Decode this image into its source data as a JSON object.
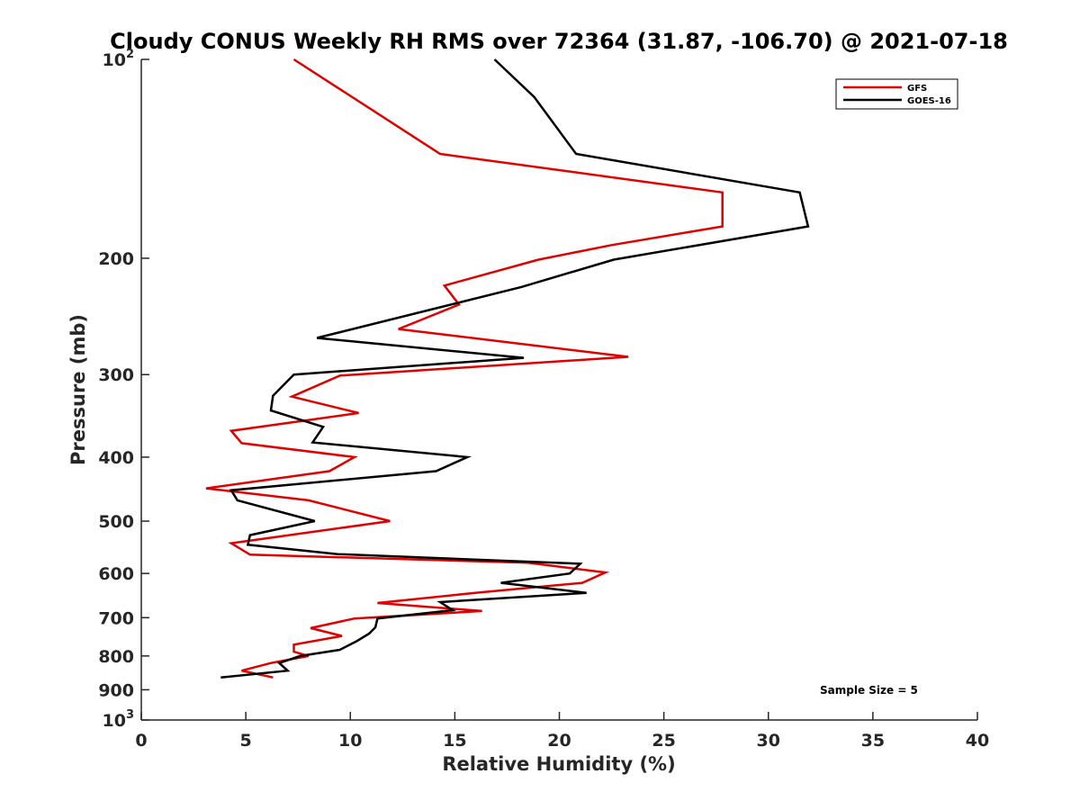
{
  "chart_data": {
    "type": "line",
    "title": "Cloudy CONUS Weekly RH RMS over 72364 (31.87, -106.70) @ 2021-07-18",
    "xlabel": "Relative Humidity (%)",
    "ylabel": "Pressure (mb)",
    "xlim": [
      0,
      40
    ],
    "ylim": [
      100,
      1000
    ],
    "y_scale": "log",
    "y_reversed": true,
    "x_ticks": [
      0,
      5,
      10,
      15,
      20,
      25,
      30,
      35,
      40
    ],
    "x_tick_labels": [
      "0",
      "5",
      "10",
      "15",
      "20",
      "25",
      "30",
      "35",
      "40"
    ],
    "y_ticks": [
      100,
      200,
      300,
      400,
      500,
      600,
      700,
      800,
      900,
      1000
    ],
    "y_tick_labels": [
      {
        "base": "10",
        "exp": "2"
      },
      {
        "base": "200",
        "exp": ""
      },
      {
        "base": "300",
        "exp": ""
      },
      {
        "base": "400",
        "exp": ""
      },
      {
        "base": "500",
        "exp": ""
      },
      {
        "base": "600",
        "exp": ""
      },
      {
        "base": "700",
        "exp": ""
      },
      {
        "base": "800",
        "exp": ""
      },
      {
        "base": "900",
        "exp": ""
      },
      {
        "base": "10",
        "exp": "3"
      }
    ],
    "grid": false,
    "legend_position": "top-right",
    "annotation": "Sample Size = 5",
    "series": [
      {
        "name": "GFS",
        "color": "#e00000",
        "points": [
          {
            "x": 7.3,
            "y": 100
          },
          {
            "x": 14.3,
            "y": 139
          },
          {
            "x": 27.8,
            "y": 159
          },
          {
            "x": 27.8,
            "y": 179
          },
          {
            "x": 22.5,
            "y": 191
          },
          {
            "x": 19.0,
            "y": 201
          },
          {
            "x": 14.5,
            "y": 220
          },
          {
            "x": 15.2,
            "y": 235
          },
          {
            "x": 12.3,
            "y": 256
          },
          {
            "x": 23.3,
            "y": 282
          },
          {
            "x": 9.5,
            "y": 301
          },
          {
            "x": 7.2,
            "y": 324
          },
          {
            "x": 10.4,
            "y": 343
          },
          {
            "x": 4.3,
            "y": 365
          },
          {
            "x": 4.8,
            "y": 381
          },
          {
            "x": 10.2,
            "y": 400
          },
          {
            "x": 9.0,
            "y": 420
          },
          {
            "x": 3.1,
            "y": 446
          },
          {
            "x": 8.0,
            "y": 465
          },
          {
            "x": 11.9,
            "y": 500
          },
          {
            "x": 4.3,
            "y": 540
          },
          {
            "x": 5.2,
            "y": 562
          },
          {
            "x": 18.5,
            "y": 578
          },
          {
            "x": 22.2,
            "y": 598
          },
          {
            "x": 21.1,
            "y": 620
          },
          {
            "x": 16.2,
            "y": 641
          },
          {
            "x": 11.3,
            "y": 665
          },
          {
            "x": 16.3,
            "y": 684
          },
          {
            "x": 10.2,
            "y": 702
          },
          {
            "x": 8.1,
            "y": 726
          },
          {
            "x": 9.6,
            "y": 746
          },
          {
            "x": 7.3,
            "y": 769
          },
          {
            "x": 7.3,
            "y": 788
          },
          {
            "x": 8.0,
            "y": 800
          },
          {
            "x": 6.2,
            "y": 820
          },
          {
            "x": 4.8,
            "y": 842
          },
          {
            "x": 6.3,
            "y": 862
          }
        ]
      },
      {
        "name": "GOES-16",
        "color": "#000000",
        "points": [
          {
            "x": 16.9,
            "y": 100
          },
          {
            "x": 18.8,
            "y": 114
          },
          {
            "x": 20.8,
            "y": 139
          },
          {
            "x": 31.5,
            "y": 159
          },
          {
            "x": 31.9,
            "y": 179
          },
          {
            "x": 22.6,
            "y": 201
          },
          {
            "x": 18.2,
            "y": 221
          },
          {
            "x": 8.4,
            "y": 264
          },
          {
            "x": 18.3,
            "y": 283
          },
          {
            "x": 7.3,
            "y": 300
          },
          {
            "x": 6.3,
            "y": 323
          },
          {
            "x": 6.2,
            "y": 340
          },
          {
            "x": 8.7,
            "y": 360
          },
          {
            "x": 8.2,
            "y": 380
          },
          {
            "x": 15.6,
            "y": 400
          },
          {
            "x": 14.1,
            "y": 420
          },
          {
            "x": 4.3,
            "y": 449
          },
          {
            "x": 4.6,
            "y": 465
          },
          {
            "x": 8.3,
            "y": 500
          },
          {
            "x": 5.2,
            "y": 525
          },
          {
            "x": 5.1,
            "y": 543
          },
          {
            "x": 9.4,
            "y": 561
          },
          {
            "x": 21.0,
            "y": 580
          },
          {
            "x": 20.5,
            "y": 600
          },
          {
            "x": 17.2,
            "y": 620
          },
          {
            "x": 21.3,
            "y": 642
          },
          {
            "x": 14.3,
            "y": 663
          },
          {
            "x": 14.9,
            "y": 682
          },
          {
            "x": 11.3,
            "y": 702
          },
          {
            "x": 11.2,
            "y": 724
          },
          {
            "x": 10.9,
            "y": 740
          },
          {
            "x": 10.3,
            "y": 760
          },
          {
            "x": 9.5,
            "y": 783
          },
          {
            "x": 7.6,
            "y": 800
          },
          {
            "x": 6.6,
            "y": 820
          },
          {
            "x": 7.0,
            "y": 842
          },
          {
            "x": 3.8,
            "y": 862
          }
        ]
      }
    ]
  }
}
